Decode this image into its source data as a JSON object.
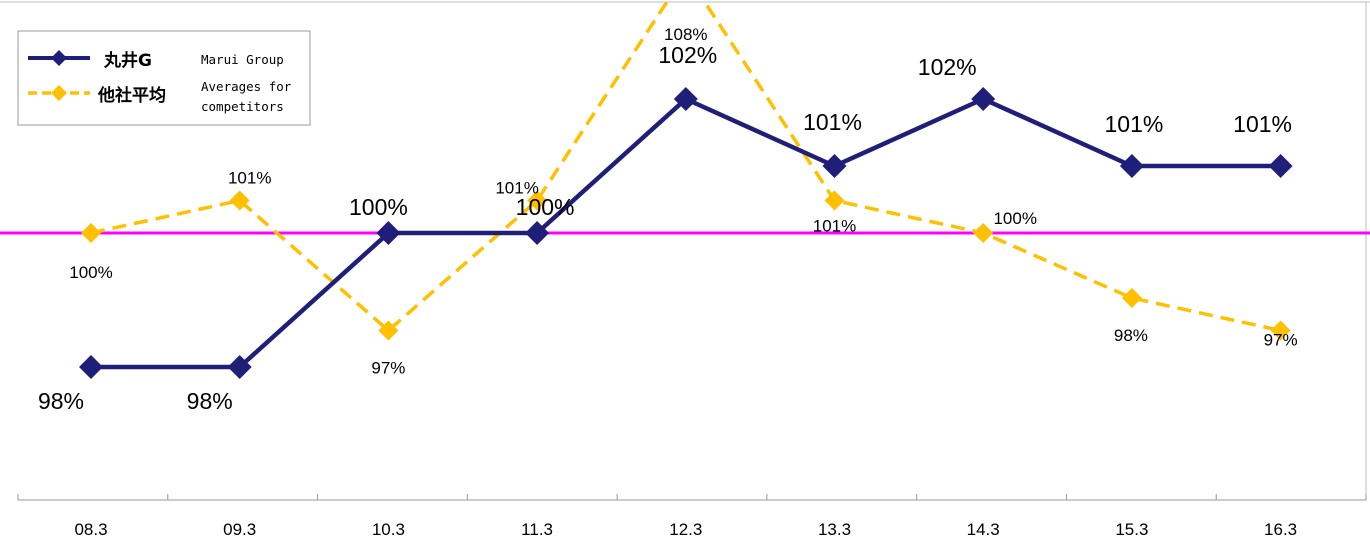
{
  "chart_data": {
    "type": "line",
    "categories": [
      "08.3",
      "09.3",
      "10.3",
      "11.3",
      "12.3",
      "13.3",
      "14.3",
      "15.3",
      "16.3"
    ],
    "series": [
      {
        "name": "丸井G",
        "name_en": "Marui Group",
        "values": [
          98,
          98,
          100,
          100,
          102,
          101,
          102,
          101,
          101
        ],
        "labels": [
          "98%",
          "98%",
          "100%",
          "100%",
          "102%",
          "101%",
          "102%",
          "101%",
          "101%"
        ],
        "color": "#1f1f7a",
        "style": "solid"
      },
      {
        "name": "他社平均",
        "name_en": "Averages for competitors",
        "values": [
          100,
          101,
          97,
          101,
          108,
          101,
          100,
          98,
          97
        ],
        "labels": [
          "100%",
          "101%",
          "97%",
          "101%",
          "108%",
          "101%",
          "100%",
          "98%",
          "97%"
        ],
        "color": "#ffc000",
        "style": "dashed"
      }
    ],
    "reference_line": {
      "value": 100,
      "color": "#ff00ff"
    },
    "legend_position": "top-left",
    "grid": false
  }
}
